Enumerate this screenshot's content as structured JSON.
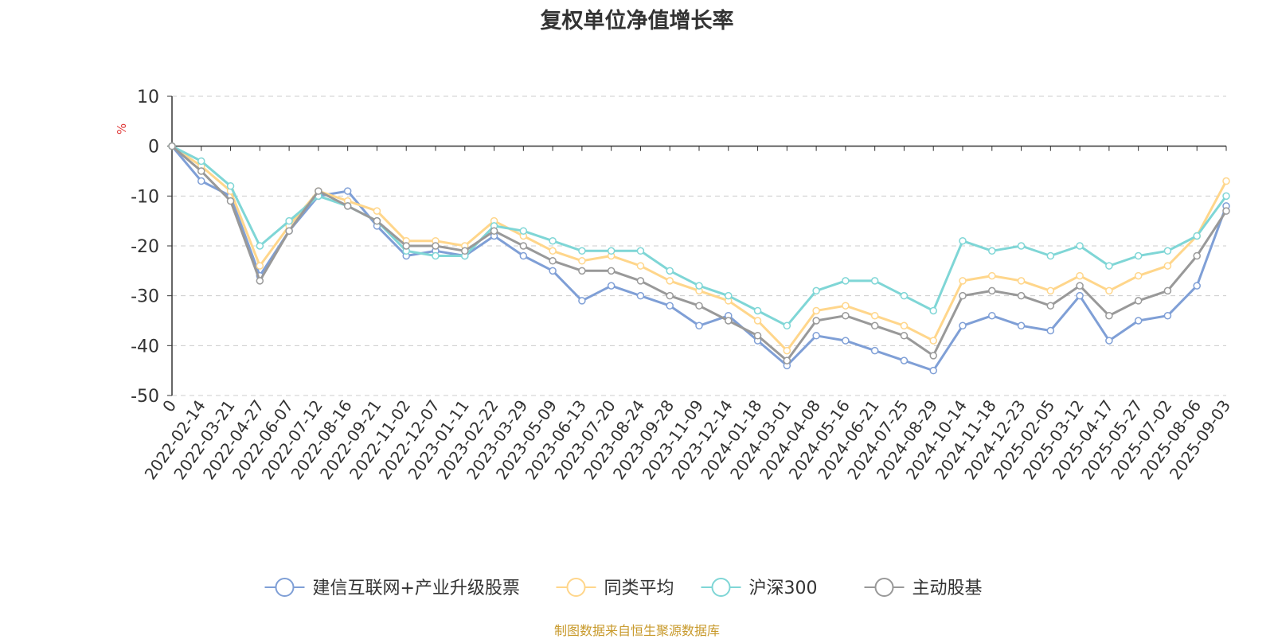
{
  "chart_data": {
    "type": "line",
    "title": "复权单位净值增长率",
    "y_unit": "%",
    "ylim": [
      -50,
      10
    ],
    "y_ticks": [
      10,
      0,
      -10,
      -20,
      -30,
      -40,
      -50
    ],
    "grid": "horizontal-dashed",
    "legend_position": "bottom",
    "x_labels": [
      "0",
      "2022-02-14",
      "2022-03-21",
      "2022-04-27",
      "2022-06-07",
      "2022-07-12",
      "2022-08-16",
      "2022-09-21",
      "2022-11-02",
      "2022-12-07",
      "2023-01-11",
      "2023-02-22",
      "2023-03-29",
      "2023-05-09",
      "2023-06-13",
      "2023-07-20",
      "2023-08-24",
      "2023-09-28",
      "2023-11-09",
      "2023-12-14",
      "2024-01-18",
      "2024-03-01",
      "2024-04-08",
      "2024-05-16",
      "2024-06-21",
      "2024-07-25",
      "2024-08-29",
      "2024-10-14",
      "2024-11-18",
      "2024-12-23",
      "2025-02-05",
      "2025-03-12",
      "2025-04-17",
      "2025-05-27",
      "2025-07-02",
      "2025-08-06",
      "2025-09-03"
    ],
    "series": [
      {
        "name": "建信互联网+产业升级股票",
        "color": "#7f9fd6",
        "values": [
          0,
          -7,
          -10,
          -26,
          -17,
          -10,
          -9,
          -16,
          -22,
          -21,
          -22,
          -18,
          -22,
          -25,
          -31,
          -28,
          -30,
          -32,
          -36,
          -34,
          -39,
          -44,
          -38,
          -39,
          -41,
          -43,
          -45,
          -36,
          -34,
          -36,
          -37,
          -30,
          -39,
          -35,
          -34,
          -28,
          -12
        ]
      },
      {
        "name": "同类平均",
        "color": "#ffd68b",
        "values": [
          0,
          -4,
          -9,
          -24,
          -16,
          -9,
          -11,
          -13,
          -19,
          -19,
          -20,
          -15,
          -18,
          -21,
          -23,
          -22,
          -24,
          -27,
          -29,
          -31,
          -35,
          -41,
          -33,
          -32,
          -34,
          -36,
          -39,
          -27,
          -26,
          -27,
          -29,
          -26,
          -29,
          -26,
          -24,
          -18,
          -7
        ]
      },
      {
        "name": "沪深300",
        "color": "#7fd6d6",
        "values": [
          0,
          -3,
          -8,
          -20,
          -15,
          -10,
          -12,
          -15,
          -21,
          -22,
          -22,
          -16,
          -17,
          -19,
          -21,
          -21,
          -21,
          -25,
          -28,
          -30,
          -33,
          -36,
          -29,
          -27,
          -27,
          -30,
          -33,
          -19,
          -21,
          -20,
          -22,
          -20,
          -24,
          -22,
          -21,
          -18,
          -10
        ]
      },
      {
        "name": "主动股基",
        "color": "#999999",
        "values": [
          0,
          -5,
          -11,
          -27,
          -17,
          -9,
          -12,
          -15,
          -20,
          -20,
          -21,
          -17,
          -20,
          -23,
          -25,
          -25,
          -27,
          -30,
          -32,
          -35,
          -38,
          -43,
          -35,
          -34,
          -36,
          -38,
          -42,
          -30,
          -29,
          -30,
          -32,
          -28,
          -34,
          -31,
          -29,
          -22,
          -13
        ]
      }
    ]
  },
  "source": "制图数据来自恒生聚源数据库"
}
